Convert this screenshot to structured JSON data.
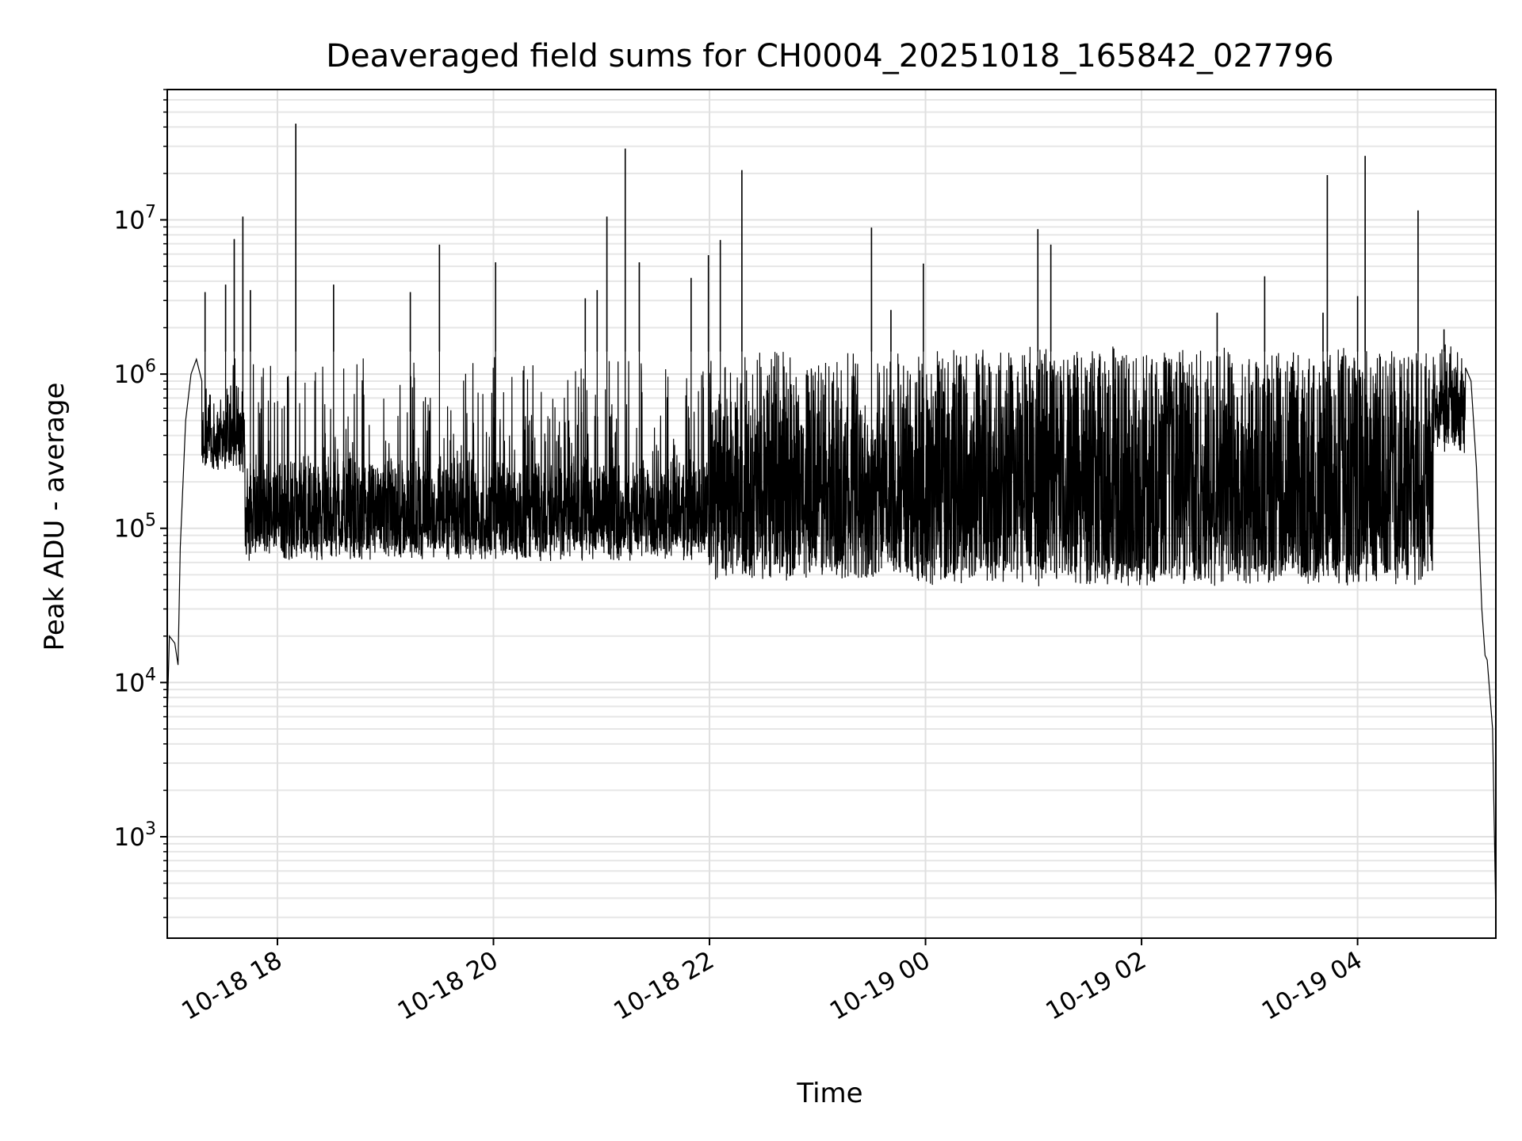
{
  "chart_data": {
    "type": "line",
    "title": "Deaveraged field sums for CH0004_20251018_165842_027796",
    "xlabel": "Time",
    "ylabel": "Peak ADU - average",
    "yscale": "log",
    "ylim": [
      220,
      70000000
    ],
    "xlim_hours": [
      16.98,
      29.28
    ],
    "grid": true,
    "grid_minor_y": true,
    "x_ticks": [
      {
        "hour": 18,
        "label": "10-18 18"
      },
      {
        "hour": 20,
        "label": "10-18 20"
      },
      {
        "hour": 22,
        "label": "10-18 22"
      },
      {
        "hour": 24,
        "label": "10-19 00"
      },
      {
        "hour": 26,
        "label": "10-19 02"
      },
      {
        "hour": 28,
        "label": "10-19 04"
      }
    ],
    "y_ticks": [
      {
        "value": 1000,
        "base": "10",
        "exp": "3"
      },
      {
        "value": 10000,
        "base": "10",
        "exp": "4"
      },
      {
        "value": 100000,
        "base": "10",
        "exp": "5"
      },
      {
        "value": 1000000,
        "base": "10",
        "exp": "6"
      },
      {
        "value": 10000000,
        "base": "10",
        "exp": "7"
      }
    ],
    "series": [
      {
        "name": "deaveraged sum",
        "color": "#000000",
        "ramp_up": [
          [
            16.98,
            6000
          ],
          [
            17.0,
            20000
          ],
          [
            17.05,
            18000
          ],
          [
            17.08,
            13000
          ],
          [
            17.1,
            75000
          ],
          [
            17.15,
            500000
          ],
          [
            17.2,
            1000000
          ],
          [
            17.25,
            1250000
          ],
          [
            17.3,
            900000
          ]
        ],
        "band_segments": [
          {
            "from": 17.3,
            "to": 17.7,
            "low": 300000,
            "high": 700000,
            "spike_max": 1500000
          },
          {
            "from": 17.7,
            "to": 22.0,
            "low": 80000,
            "high": 300000,
            "spike_max": 1400000
          },
          {
            "from": 22.0,
            "to": 24.0,
            "low": 60000,
            "high": 800000,
            "spike_max": 1500000
          },
          {
            "from": 24.0,
            "to": 28.7,
            "low": 55000,
            "high": 1200000,
            "spike_max": 1550000
          },
          {
            "from": 28.7,
            "to": 29.0,
            "low": 400000,
            "high": 1200000,
            "spike_max": 1700000
          }
        ],
        "ramp_down": [
          [
            29.0,
            1100000
          ],
          [
            29.05,
            900000
          ],
          [
            29.1,
            250000
          ],
          [
            29.15,
            30000
          ],
          [
            29.18,
            15000
          ],
          [
            29.2,
            14000
          ],
          [
            29.25,
            5000
          ],
          [
            29.28,
            300
          ]
        ],
        "peaks": [
          {
            "hour": 17.33,
            "value": 3400000
          },
          {
            "hour": 17.52,
            "value": 3800000
          },
          {
            "hour": 17.6,
            "value": 7500000
          },
          {
            "hour": 17.68,
            "value": 10500000
          },
          {
            "hour": 17.75,
            "value": 3500000
          },
          {
            "hour": 18.17,
            "value": 42000000
          },
          {
            "hour": 18.52,
            "value": 3800000
          },
          {
            "hour": 19.23,
            "value": 3400000
          },
          {
            "hour": 19.5,
            "value": 6900000
          },
          {
            "hour": 20.02,
            "value": 5300000
          },
          {
            "hour": 20.85,
            "value": 3100000
          },
          {
            "hour": 20.96,
            "value": 3500000
          },
          {
            "hour": 21.05,
            "value": 10500000
          },
          {
            "hour": 21.22,
            "value": 29000000
          },
          {
            "hour": 21.35,
            "value": 5300000
          },
          {
            "hour": 21.83,
            "value": 4200000
          },
          {
            "hour": 21.99,
            "value": 5900000
          },
          {
            "hour": 22.1,
            "value": 7400000
          },
          {
            "hour": 22.3,
            "value": 21000000
          },
          {
            "hour": 23.5,
            "value": 8900000
          },
          {
            "hour": 23.68,
            "value": 2600000
          },
          {
            "hour": 23.98,
            "value": 5200000
          },
          {
            "hour": 25.04,
            "value": 8700000
          },
          {
            "hour": 25.16,
            "value": 6900000
          },
          {
            "hour": 26.7,
            "value": 2500000
          },
          {
            "hour": 27.14,
            "value": 4300000
          },
          {
            "hour": 27.68,
            "value": 2500000
          },
          {
            "hour": 27.72,
            "value": 19500000
          },
          {
            "hour": 28.0,
            "value": 3200000
          },
          {
            "hour": 28.07,
            "value": 26000000
          },
          {
            "hour": 28.56,
            "value": 11500000
          },
          {
            "hour": 28.8,
            "value": 1950000
          }
        ]
      }
    ]
  }
}
